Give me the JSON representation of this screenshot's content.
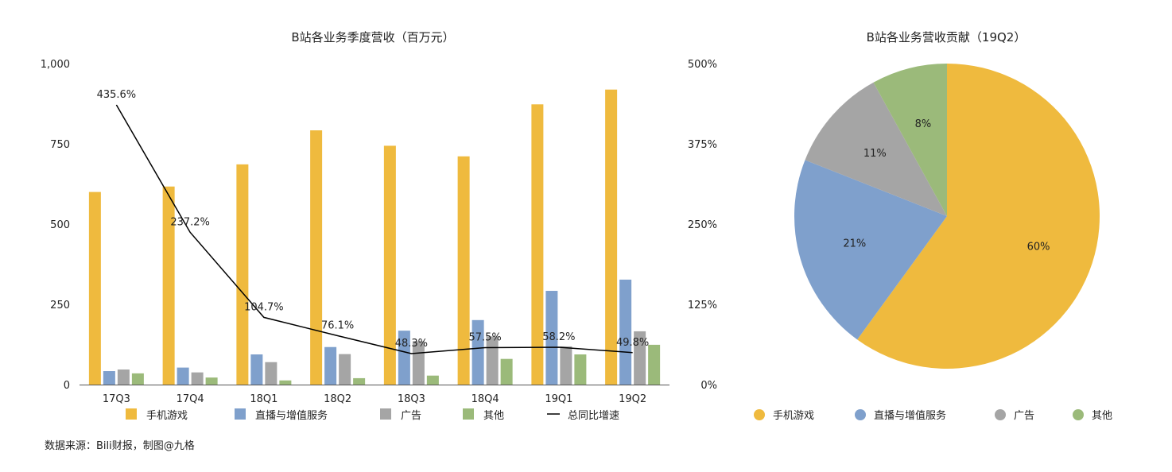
{
  "colors": {
    "games": "#efba3e",
    "live": "#7fa0cc",
    "ads": "#a5a5a5",
    "other": "#9bba7a",
    "line": "#000000"
  },
  "chart_data": [
    {
      "type": "bar",
      "title": "B站各业务季度营收（百万元）",
      "categories": [
        "17Q3",
        "17Q4",
        "18Q1",
        "18Q2",
        "18Q3",
        "18Q4",
        "19Q1",
        "19Q2"
      ],
      "ylim": [
        0,
        1000
      ],
      "yticks": [
        "0",
        "250",
        "500",
        "750",
        "1,000"
      ],
      "y2lim": [
        0,
        500
      ],
      "y2ticks": [
        "0%",
        "125%",
        "250%",
        "375%",
        "500%"
      ],
      "series": [
        {
          "name": "手机游戏",
          "values": [
            600,
            617,
            686,
            792,
            744,
            711,
            873,
            919
          ]
        },
        {
          "name": "直播与增值服务",
          "values": [
            42,
            53,
            94,
            117,
            168,
            201,
            292,
            327
          ]
        },
        {
          "name": "广告",
          "values": [
            47,
            38,
            70,
            95,
            135,
            150,
            119,
            166
          ]
        },
        {
          "name": "其他",
          "values": [
            35,
            22,
            13,
            20,
            28,
            80,
            94,
            124
          ]
        }
      ],
      "line": {
        "name": "总同比增速",
        "values": [
          435.6,
          237.2,
          104.7,
          76.1,
          48.3,
          57.5,
          58.2,
          49.8
        ],
        "labels": [
          "435.6%",
          "237.2%",
          "104.7%",
          "76.1%",
          "48.3%",
          "57.5%",
          "58.2%",
          "49.8%"
        ]
      },
      "legend": "bottom"
    },
    {
      "type": "pie",
      "title": "B站各业务营收贡献（19Q2）",
      "slices": [
        {
          "name": "手机游戏",
          "value": 60,
          "label": "60%"
        },
        {
          "name": "直播与增值服务",
          "value": 21,
          "label": "21%"
        },
        {
          "name": "广告",
          "value": 11,
          "label": "11%"
        },
        {
          "name": "其他",
          "value": 8,
          "label": "8%"
        }
      ],
      "legend": "bottom"
    }
  ],
  "source": "数据来源：Bili财报，制图@九格"
}
